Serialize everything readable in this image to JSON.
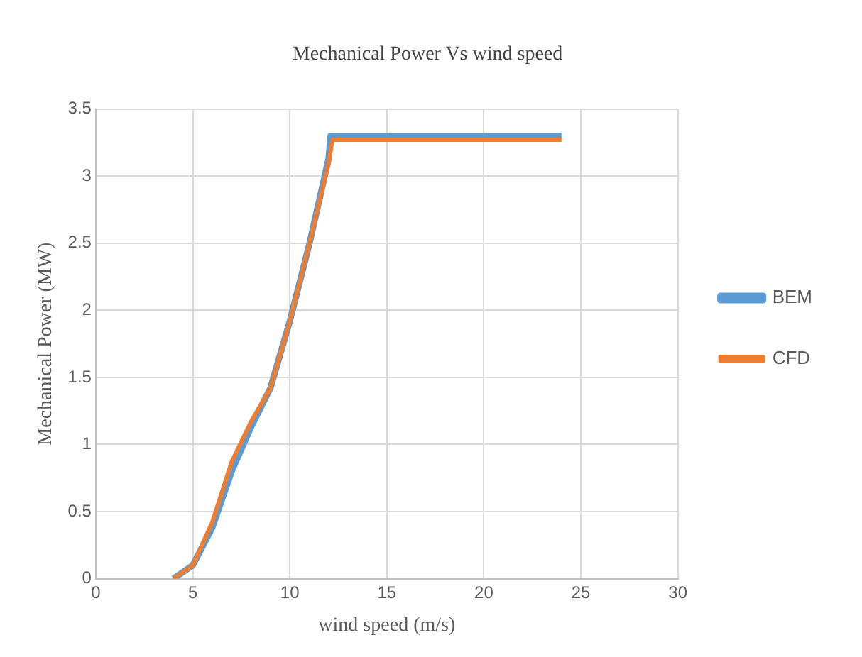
{
  "chart_data": {
    "type": "line",
    "title": "Mechanical Power Vs wind speed",
    "xlabel": "wind speed (m/s)",
    "ylabel": "Mechanical Power (MW)",
    "xlim": [
      0,
      30
    ],
    "xticks": [
      0,
      5,
      10,
      15,
      20,
      25,
      30
    ],
    "ylim": [
      0,
      3.5
    ],
    "yticks": [
      0,
      0.5,
      1,
      1.5,
      2,
      2.5,
      3,
      3.5
    ],
    "grid": true,
    "legend": "right",
    "marker": "none",
    "series": [
      {
        "name": "BEM",
        "color": "#5b9bd5",
        "x": [
          4,
          5,
          6,
          7,
          8,
          9,
          10,
          11,
          12,
          12.1,
          24
        ],
        "values": [
          0,
          0.1,
          0.38,
          0.8,
          1.13,
          1.42,
          1.92,
          2.49,
          3.13,
          3.3,
          3.3
        ]
      },
      {
        "name": "CFD",
        "color": "#ed7d31",
        "x": [
          4,
          5,
          6,
          7,
          8,
          9,
          10,
          11,
          12,
          12.2,
          24
        ],
        "values": [
          0,
          0.1,
          0.42,
          0.87,
          1.17,
          1.42,
          1.92,
          2.49,
          3.1,
          3.27,
          3.27
        ]
      }
    ]
  }
}
